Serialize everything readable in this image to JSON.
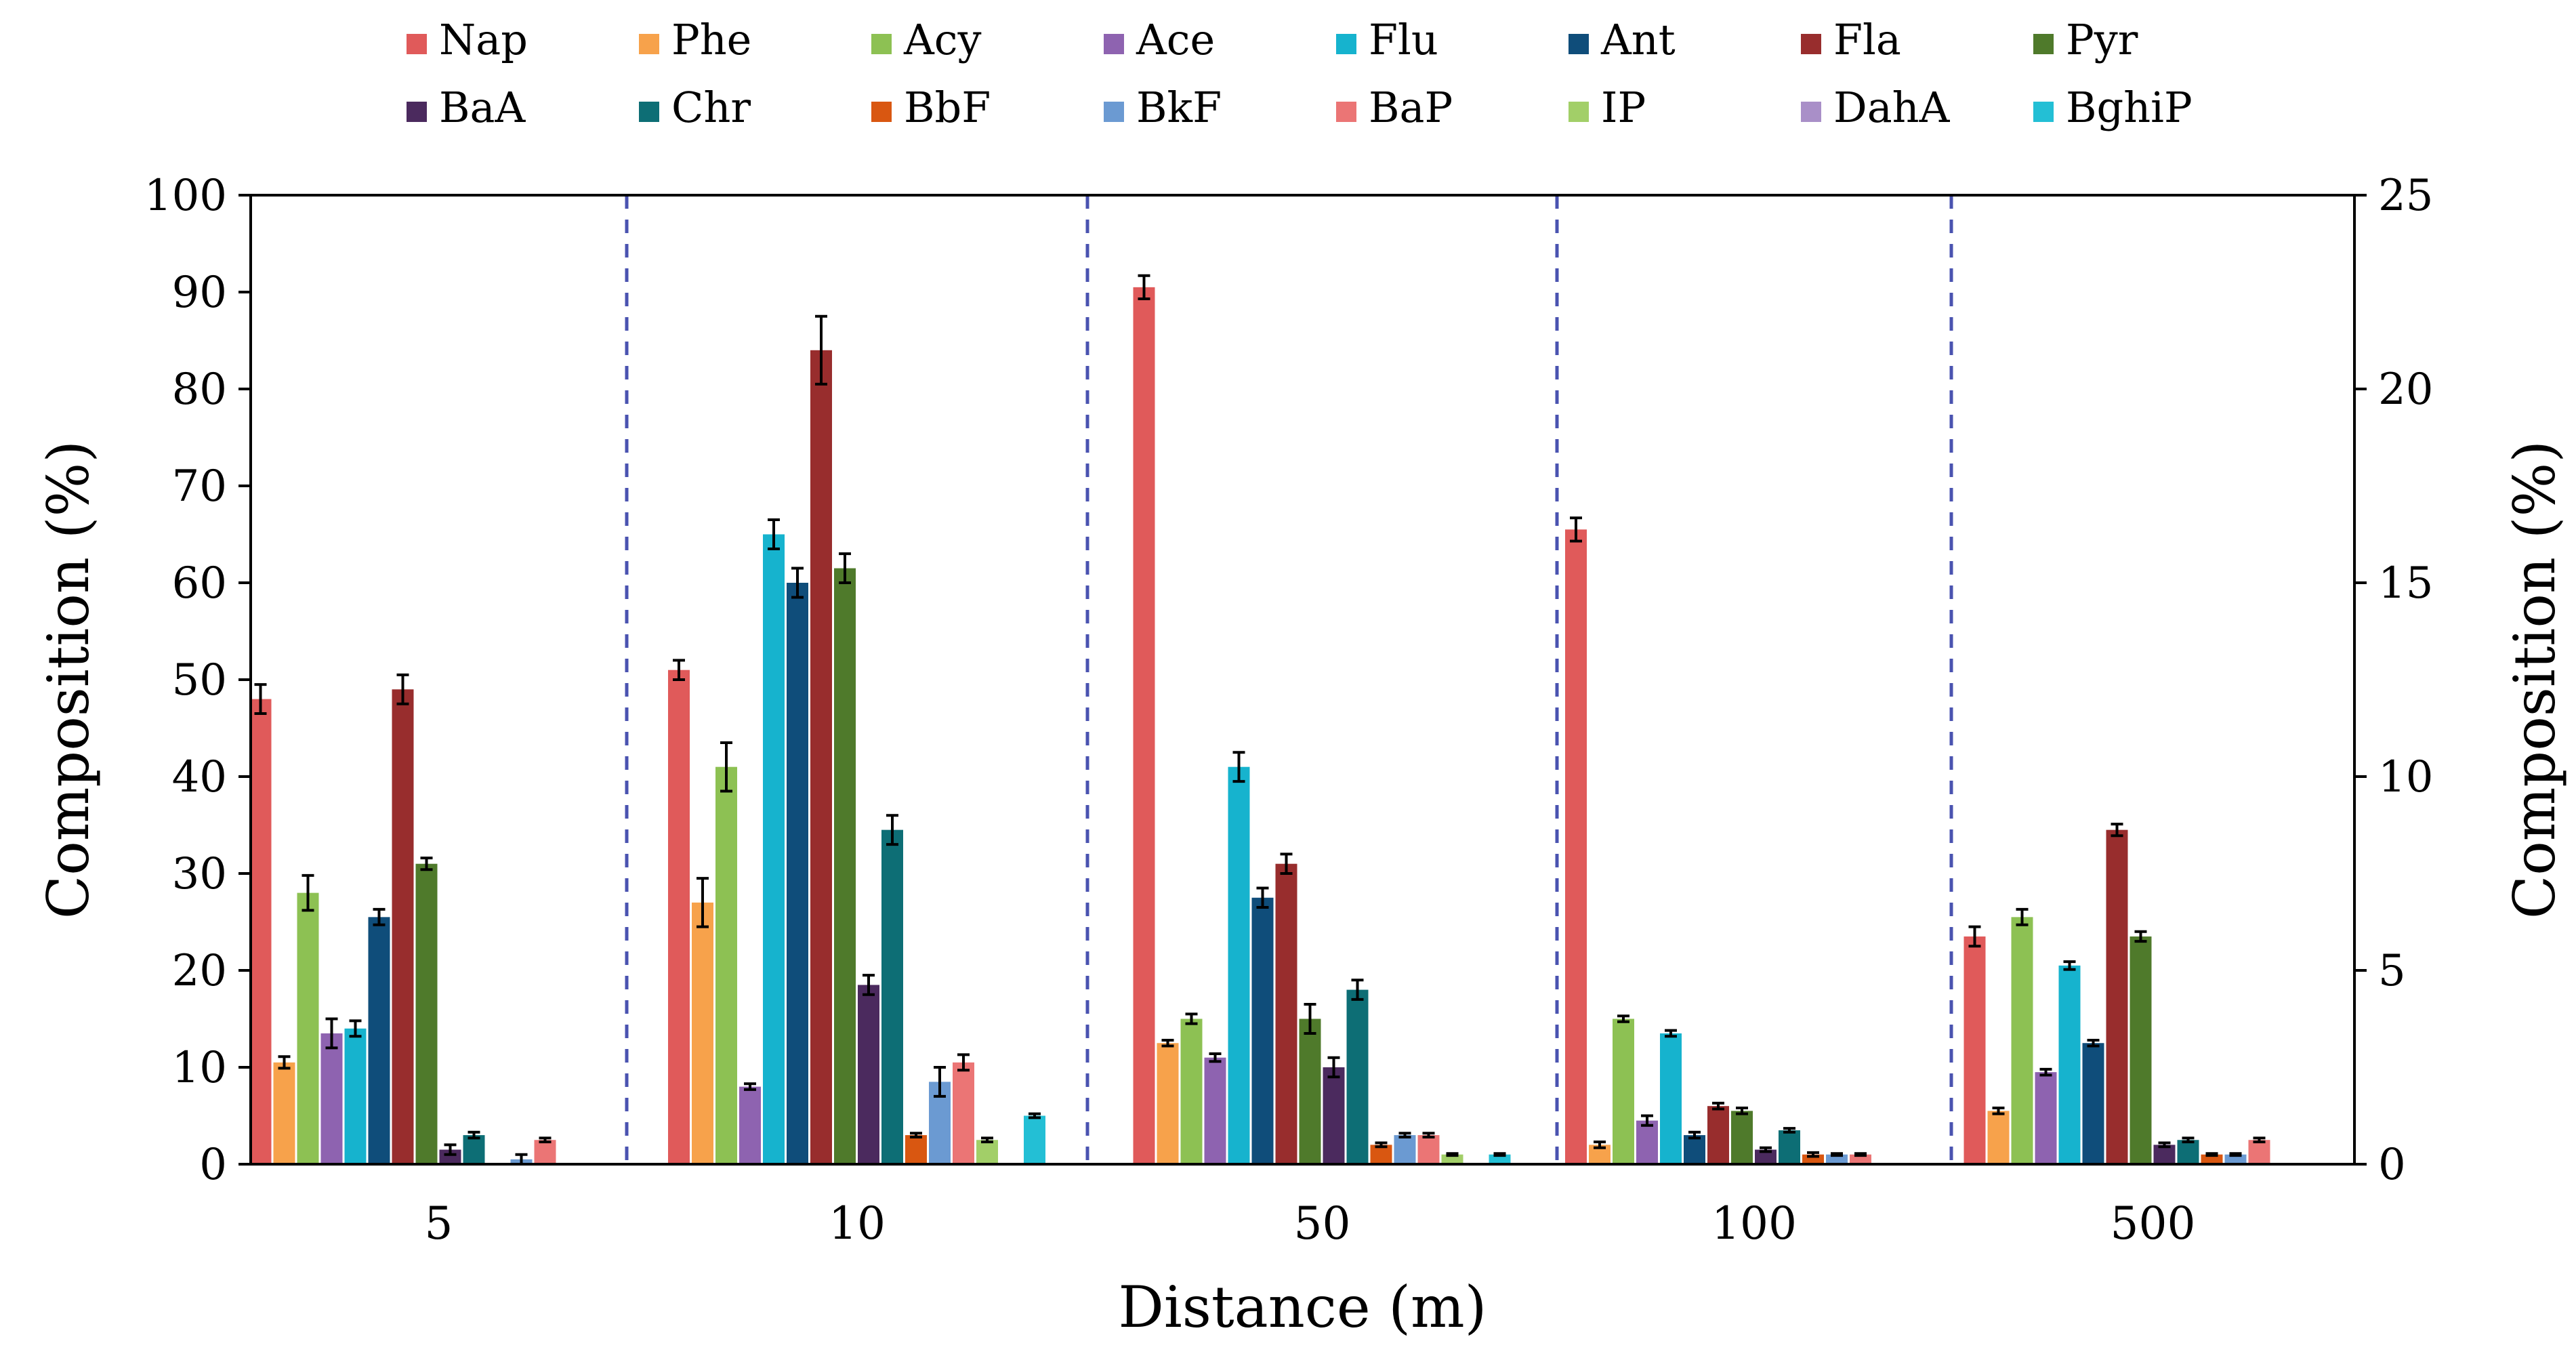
{
  "chart_data": {
    "type": "bar",
    "title": "",
    "xlabel": "Distance (m)",
    "ylabel": "Composition (%)",
    "ylabel_right": "Composition (%)",
    "ylim": [
      0,
      100
    ],
    "ylim_right": [
      0,
      25
    ],
    "yticks": [
      "0",
      "10",
      "20",
      "30",
      "40",
      "50",
      "60",
      "70",
      "80",
      "90",
      "100"
    ],
    "yticks_right": [
      "0",
      "5",
      "10",
      "15",
      "20",
      "25"
    ],
    "categories": [
      "5",
      "10",
      "50",
      "100",
      "500"
    ],
    "legend_position": "top",
    "grid": false,
    "separators": "dashed-vertical",
    "series": [
      {
        "name": "Nap",
        "color": "#E05A5A",
        "values": [
          48,
          51,
          90.5,
          65.5,
          23.5
        ],
        "errors": [
          1.5,
          1.0,
          1.2,
          1.2,
          1.0
        ]
      },
      {
        "name": "Phe",
        "color": "#F7A24B",
        "values": [
          10.5,
          27,
          12.5,
          2,
          5.5
        ],
        "errors": [
          0.6,
          2.5,
          0.3,
          0.3,
          0.3
        ]
      },
      {
        "name": "Acy",
        "color": "#8DC153",
        "values": [
          28,
          41,
          15,
          15,
          25.5
        ],
        "errors": [
          1.8,
          2.5,
          0.5,
          0.3,
          0.8
        ]
      },
      {
        "name": "Ace",
        "color": "#8E63B0",
        "values": [
          13.5,
          8,
          11,
          4.5,
          9.5
        ],
        "errors": [
          1.5,
          0.3,
          0.4,
          0.5,
          0.3
        ]
      },
      {
        "name": "Flu",
        "color": "#16B3CE",
        "values": [
          14,
          65,
          41,
          13.5,
          20.5
        ],
        "errors": [
          0.8,
          1.5,
          1.5,
          0.3,
          0.4
        ]
      },
      {
        "name": "Ant",
        "color": "#0F4D7A",
        "values": [
          25.5,
          60,
          27.5,
          3,
          12.5
        ],
        "errors": [
          0.8,
          1.5,
          1.0,
          0.3,
          0.3
        ]
      },
      {
        "name": "Fla",
        "color": "#982D2D",
        "values": [
          49,
          84,
          31,
          6,
          34.5
        ],
        "errors": [
          1.5,
          3.5,
          1.0,
          0.3,
          0.6
        ]
      },
      {
        "name": "Pyr",
        "color": "#4F7A2B",
        "values": [
          31,
          61.5,
          15,
          5.5,
          23.5
        ],
        "errors": [
          0.6,
          1.5,
          1.5,
          0.3,
          0.5
        ]
      },
      {
        "name": "BaA",
        "color": "#4B2A5E",
        "values": [
          1.5,
          18.5,
          10,
          1.5,
          2
        ],
        "errors": [
          0.5,
          1.0,
          1.0,
          0.2,
          0.2
        ]
      },
      {
        "name": "Chr",
        "color": "#0D6E75",
        "values": [
          3,
          34.5,
          18,
          3.5,
          2.5
        ],
        "errors": [
          0.3,
          1.5,
          1.0,
          0.2,
          0.2
        ]
      },
      {
        "name": "BbF",
        "color": "#D95711",
        "values": [
          0,
          3,
          2,
          1,
          1
        ],
        "errors": [
          0,
          0.2,
          0.2,
          0.2,
          0.1
        ]
      },
      {
        "name": "BkF",
        "color": "#6B9AD2",
        "values": [
          0.5,
          8.5,
          3,
          1,
          1
        ],
        "errors": [
          0.5,
          1.5,
          0.2,
          0.1,
          0.1
        ]
      },
      {
        "name": "BaP",
        "color": "#EB7575",
        "values": [
          2.5,
          10.5,
          3,
          1,
          2.5
        ],
        "errors": [
          0.2,
          0.8,
          0.2,
          0.1,
          0.2
        ]
      },
      {
        "name": "IP",
        "color": "#A2CF68",
        "values": [
          0,
          2.5,
          1,
          0,
          0
        ],
        "errors": [
          0,
          0.2,
          0.1,
          0,
          0
        ]
      },
      {
        "name": "DahA",
        "color": "#A98FC8",
        "values": [
          0,
          0,
          0,
          0,
          0
        ],
        "errors": [
          0,
          0,
          0,
          0,
          0
        ]
      },
      {
        "name": "BghiP",
        "color": "#23BFD5",
        "values": [
          0,
          5,
          1,
          0,
          0
        ],
        "errors": [
          0,
          0.2,
          0.1,
          0,
          0
        ]
      }
    ]
  },
  "colors": {
    "separator": "#4A53B0",
    "axis": "#000000",
    "error_bar": "#000000"
  }
}
